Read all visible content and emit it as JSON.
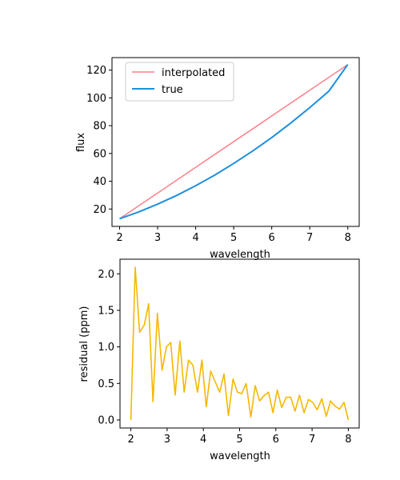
{
  "chart_data": [
    {
      "type": "line",
      "xlabel": "wavelength",
      "ylabel": "flux",
      "xlim": [
        1.8,
        8.3
      ],
      "ylim": [
        7.5,
        129
      ],
      "xticks": [
        2,
        3,
        4,
        5,
        6,
        7,
        8
      ],
      "yticks": [
        20,
        40,
        60,
        80,
        100,
        120
      ],
      "legend": {
        "placement": "upper-left",
        "entries": [
          "interpolated",
          "true"
        ]
      },
      "series": [
        {
          "name": "interpolated",
          "color": "#ff7f8a",
          "x": [
            2,
            8
          ],
          "y": [
            13,
            124
          ]
        },
        {
          "name": "true",
          "color": "#1f8fdc",
          "x": [
            2.0,
            2.5,
            3.0,
            3.5,
            4.0,
            4.5,
            5.0,
            5.5,
            6.0,
            6.5,
            7.0,
            7.5,
            8.0
          ],
          "y": [
            13.0,
            17.9,
            23.5,
            29.8,
            36.8,
            44.4,
            52.8,
            61.8,
            71.5,
            81.9,
            93.0,
            104.8,
            124.0
          ]
        }
      ]
    },
    {
      "type": "line",
      "xlabel": "wavelength",
      "ylabel": "residual (ppm)",
      "xlim": [
        1.7,
        8.3
      ],
      "ylim": [
        -0.11,
        2.2
      ],
      "xticks": [
        2,
        3,
        4,
        5,
        6,
        7,
        8
      ],
      "yticks": [
        0.0,
        0.5,
        1.0,
        1.5,
        2.0
      ],
      "series": [
        {
          "name": "residual",
          "color": "#f5b800",
          "x": [
            2.0,
            2.12,
            2.24,
            2.37,
            2.49,
            2.61,
            2.73,
            2.86,
            2.98,
            3.1,
            3.22,
            3.35,
            3.47,
            3.59,
            3.71,
            3.84,
            3.96,
            4.08,
            4.2,
            4.33,
            4.45,
            4.57,
            4.69,
            4.82,
            4.94,
            5.06,
            5.18,
            5.31,
            5.43,
            5.55,
            5.67,
            5.8,
            5.92,
            6.04,
            6.16,
            6.29,
            6.41,
            6.53,
            6.65,
            6.78,
            6.9,
            7.02,
            7.14,
            7.27,
            7.39,
            7.51,
            7.63,
            7.76,
            7.88,
            8.0
          ],
          "y": [
            0.0,
            2.09,
            1.2,
            1.3,
            1.59,
            0.25,
            1.46,
            0.68,
            1.0,
            1.06,
            0.34,
            1.08,
            0.38,
            0.82,
            0.75,
            0.38,
            0.82,
            0.18,
            0.67,
            0.52,
            0.38,
            0.63,
            0.06,
            0.56,
            0.38,
            0.36,
            0.5,
            0.04,
            0.47,
            0.26,
            0.33,
            0.38,
            0.1,
            0.41,
            0.17,
            0.31,
            0.31,
            0.12,
            0.34,
            0.1,
            0.28,
            0.24,
            0.14,
            0.29,
            0.05,
            0.26,
            0.19,
            0.15,
            0.24,
            0.0
          ]
        }
      ]
    }
  ]
}
